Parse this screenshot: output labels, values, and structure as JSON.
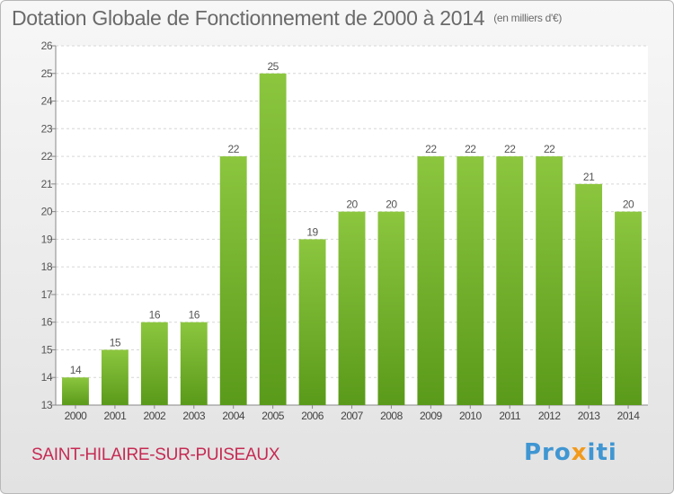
{
  "chart_data": {
    "type": "bar",
    "title": "Dotation Globale de Fonctionnement de 2000 à 2014",
    "subtitle": "(en milliers d'€)",
    "categories": [
      "2000",
      "2001",
      "2002",
      "2003",
      "2004",
      "2005",
      "2006",
      "2007",
      "2008",
      "2009",
      "2010",
      "2011",
      "2012",
      "2013",
      "2014"
    ],
    "values": [
      14,
      15,
      16,
      16,
      22,
      25,
      19,
      20,
      20,
      22,
      22,
      22,
      22,
      21,
      20
    ],
    "data_labels": [
      "14",
      "15",
      "16",
      "16",
      "22",
      "25",
      "19",
      "20",
      "20",
      "22",
      "22",
      "22",
      "22",
      "21",
      "20"
    ],
    "ylim": [
      13,
      26
    ],
    "yticks": [
      "13",
      "14",
      "15",
      "16",
      "17",
      "18",
      "19",
      "20",
      "21",
      "22",
      "23",
      "24",
      "25",
      "26"
    ],
    "xlabel": "",
    "ylabel": "",
    "grid": true,
    "colors": {
      "bar": "#8cc63f",
      "bar_dark": "#5a9a1a",
      "grid": "#d6d6d6"
    }
  },
  "footer": {
    "commune": "SAINT-HILAIRE-SUR-PUISEAUX",
    "logo_pre": "Pro",
    "logo_x": "x",
    "logo_post": "iti"
  }
}
